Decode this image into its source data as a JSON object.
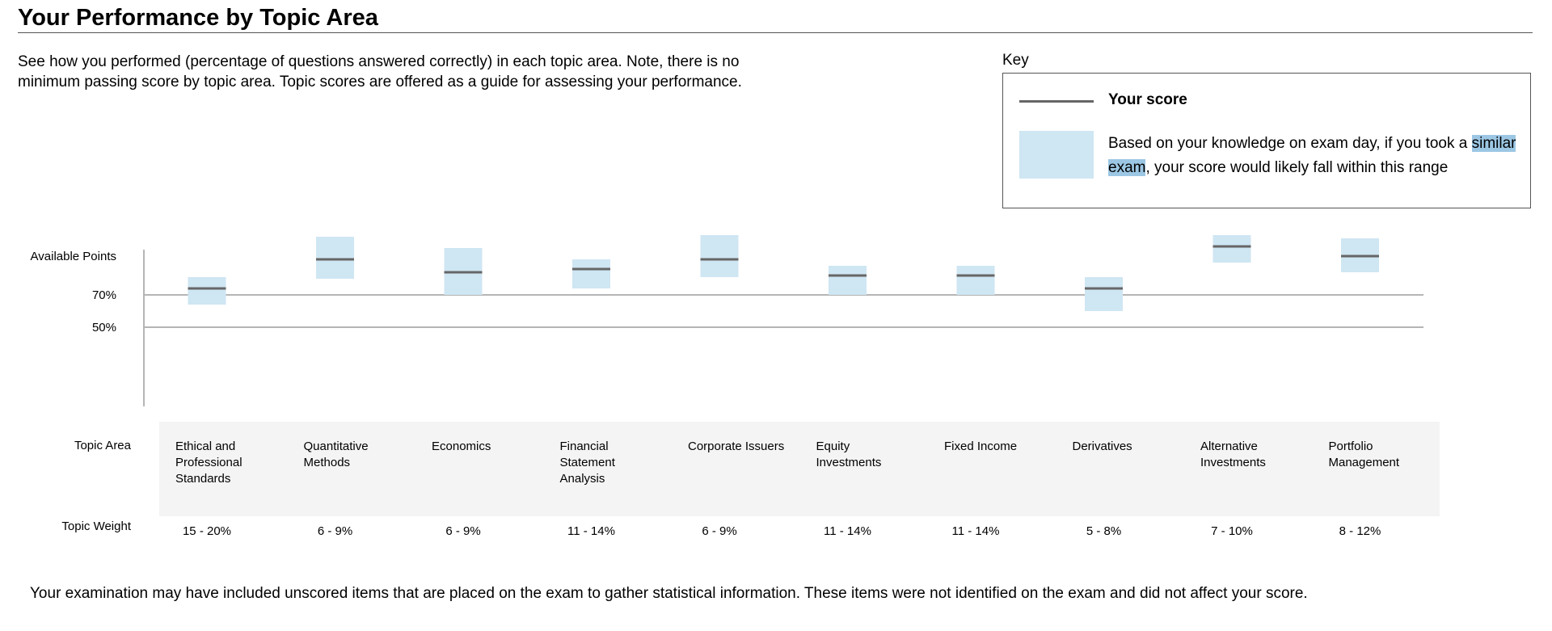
{
  "title": "Your Performance by Topic Area",
  "intro": "See how you performed (percentage of questions answered correctly) in each topic area. Note, there is no minimum passing score by topic area. Topic scores are offered as a guide for assessing your performance.",
  "key": {
    "label": "Key",
    "score_label": "Your score",
    "range_text_highlight": "similar exam",
    "range_text_before": "Based on your knowledge on exam day, if you took a ",
    "range_text_after": ", your score would likely fall within this range",
    "line_color": "#666666",
    "range_color": "#cfe6f3",
    "highlight_color": "#9cc7e4"
  },
  "row_labels": {
    "topic_area": "Topic Area",
    "topic_weight": "Topic Weight"
  },
  "footer": "Your examination may have included unscored items that are placed on the exam to gather statistical information. These items were not identified on the exam and did not affect your score.",
  "chart_data": {
    "type": "range",
    "y_tick_labels": [
      {
        "label": "Available Points",
        "value": 100
      },
      {
        "label": "70%",
        "value": 70
      },
      {
        "label": "50%",
        "value": 50
      }
    ],
    "ylim": [
      0,
      107
    ],
    "reference_lines": [
      70,
      50
    ],
    "categories": [
      "Ethical and Professional Standards",
      "Quantitative Methods",
      "Economics",
      "Financial Statement Analysis",
      "Corporate Issuers",
      "Equity Investments",
      "Fixed Income",
      "Derivatives",
      "Alternative Investments",
      "Portfolio Management"
    ],
    "category_lines": [
      [
        "Ethical and",
        "Professional",
        "Standards"
      ],
      [
        "Quantitative",
        "Methods"
      ],
      [
        "Economics"
      ],
      [
        "Financial",
        "Statement",
        "Analysis"
      ],
      [
        "Corporate Issuers"
      ],
      [
        "Equity",
        "Investments"
      ],
      [
        "Fixed Income"
      ],
      [
        "Derivatives"
      ],
      [
        "Alternative",
        "Investments"
      ],
      [
        "Portfolio",
        "Management"
      ]
    ],
    "weights": [
      "15 - 20%",
      "6 - 9%",
      "6 - 9%",
      "11 - 14%",
      "6 - 9%",
      "11 - 14%",
      "11 - 14%",
      "5 - 8%",
      "7 - 10%",
      "8 - 12%"
    ],
    "scores": [
      74,
      92,
      84,
      86,
      92,
      82,
      82,
      74,
      100,
      94
    ],
    "range_low": [
      64,
      80,
      70,
      74,
      81,
      70,
      70,
      60,
      90,
      84
    ],
    "range_high": [
      81,
      106,
      99,
      92,
      107,
      88,
      88,
      81,
      107,
      105
    ]
  }
}
